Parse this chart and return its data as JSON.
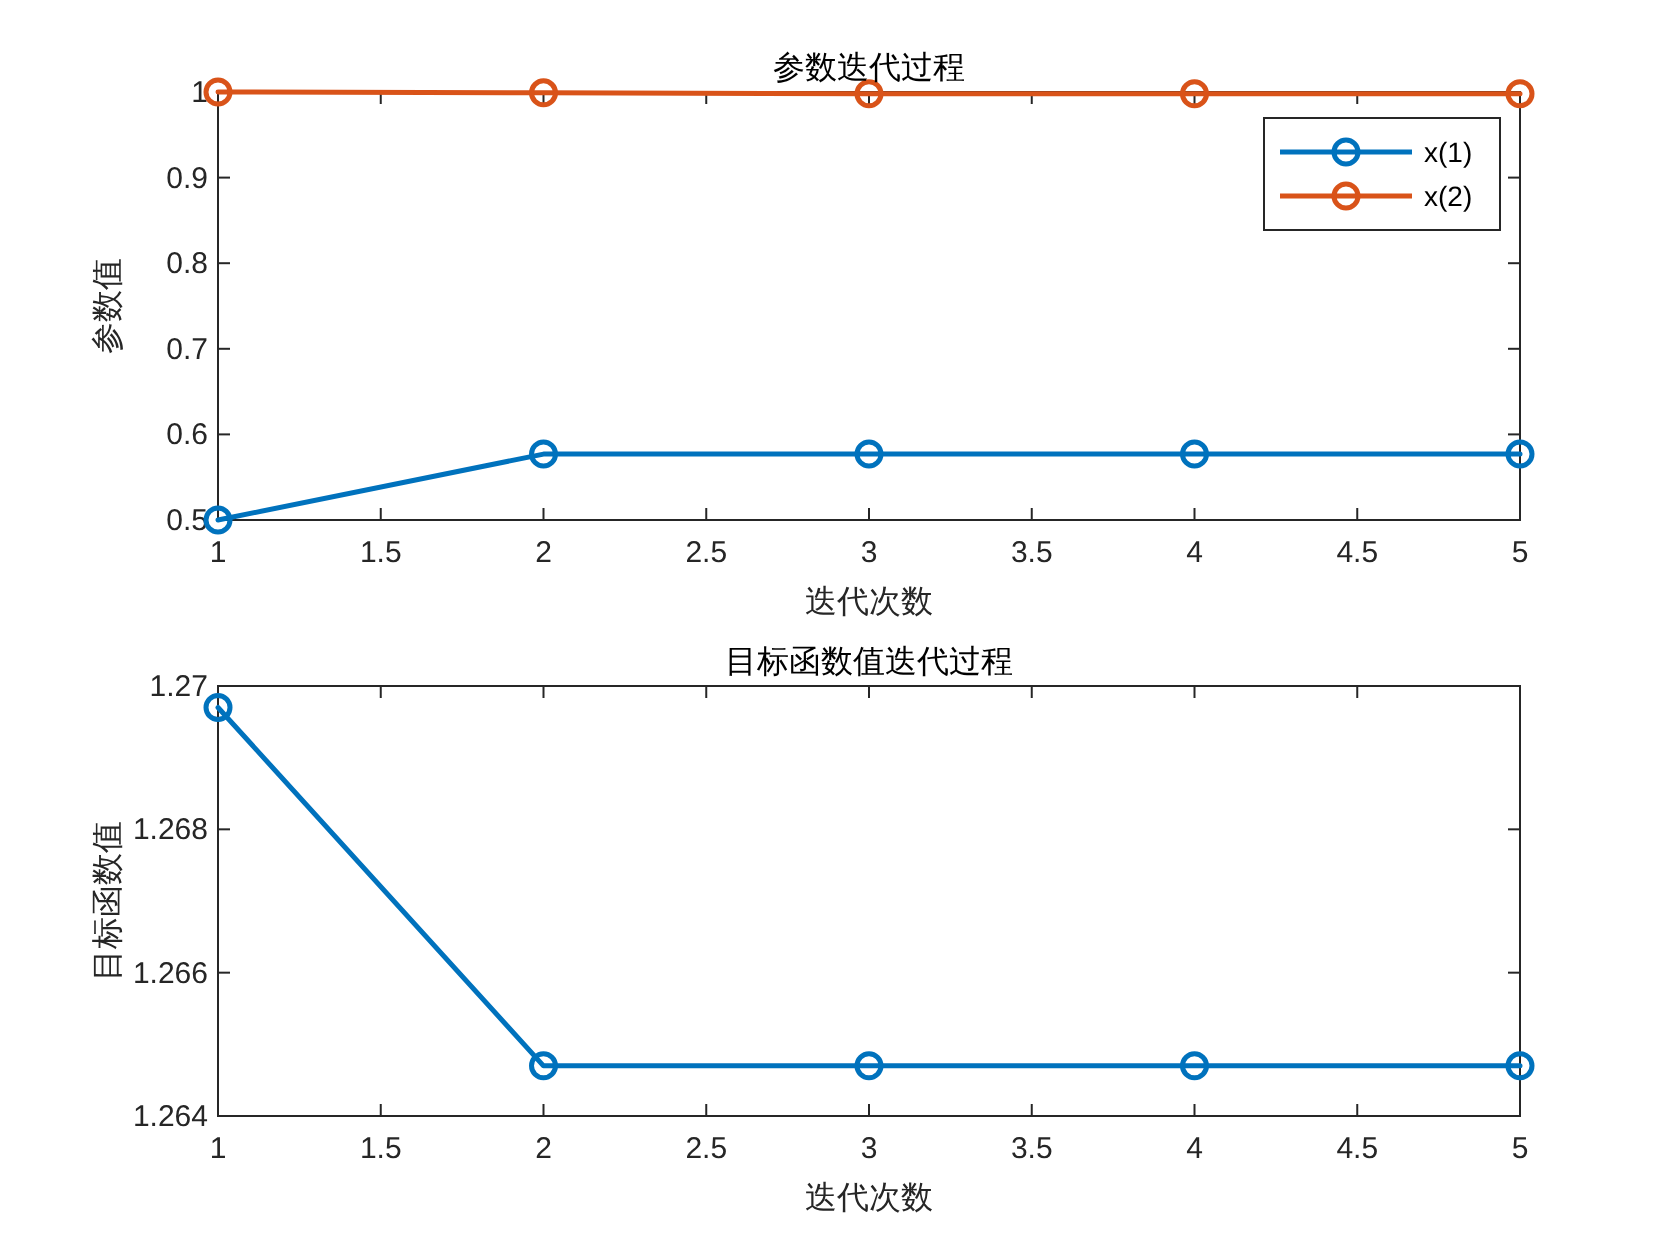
{
  "chart_data": [
    {
      "type": "line",
      "title": "参数迭代过程",
      "xlabel": "迭代次数",
      "ylabel": "参数值",
      "x": [
        1,
        2,
        3,
        4,
        5
      ],
      "series": [
        {
          "name": "x(1)",
          "color": "#0072bd",
          "values": [
            0.5,
            0.577,
            0.577,
            0.577,
            0.577
          ]
        },
        {
          "name": "x(2)",
          "color": "#d95319",
          "values": [
            1,
            0.999,
            0.998,
            0.998,
            0.998
          ]
        }
      ],
      "xlim": [
        1,
        5
      ],
      "xticks": [
        1,
        1.5,
        2,
        2.5,
        3,
        3.5,
        4,
        4.5,
        5
      ],
      "ylim": [
        0.5,
        1
      ],
      "yticks": [
        0.5,
        0.6,
        0.7,
        0.8,
        0.9,
        1
      ],
      "marker": "circle",
      "legend": "top right",
      "grid": false
    },
    {
      "type": "line",
      "title": "目标函数值迭代过程",
      "xlabel": "迭代次数",
      "ylabel": "目标函数值",
      "x": [
        1,
        2,
        3,
        4,
        5
      ],
      "series": [
        {
          "color": "#0072bd",
          "values": [
            1.2697,
            1.2647,
            1.2647,
            1.2647,
            1.2647
          ]
        }
      ],
      "xlim": [
        1,
        5
      ],
      "xticks": [
        1,
        1.5,
        2,
        2.5,
        3,
        3.5,
        4,
        4.5,
        5
      ],
      "ylim": [
        1.264,
        1.27
      ],
      "yticks": [
        1.264,
        1.266,
        1.268,
        1.27
      ],
      "marker": "circle",
      "grid": false
    }
  ]
}
